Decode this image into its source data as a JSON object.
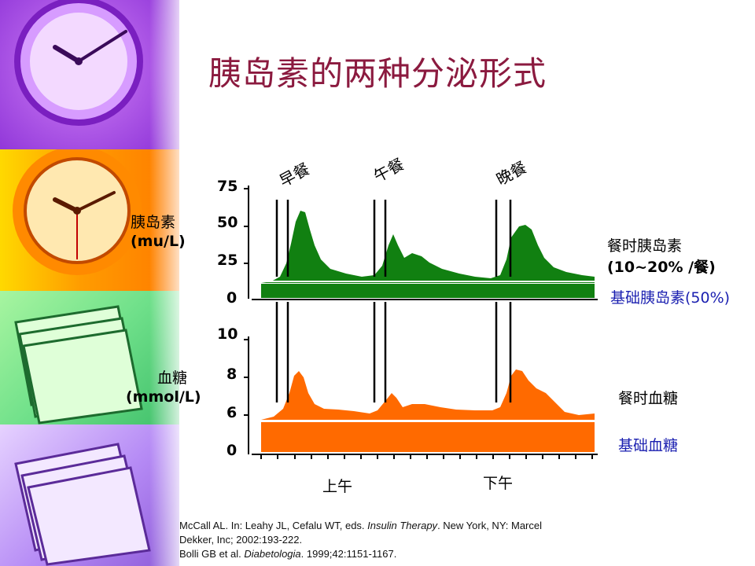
{
  "slide": {
    "title": "胰岛素的两种分泌形式"
  },
  "meals": [
    "早餐",
    "午餐",
    "晚餐"
  ],
  "insulin_panel": {
    "ylabel_line1": "胰岛素",
    "ylabel_line2": "(mu/L)",
    "ticks": [
      "75",
      "50",
      "25",
      "0"
    ],
    "label_meal_line1": "餐时胰岛素",
    "label_meal_line2": "(10~20% /餐)",
    "label_basal": "基础胰岛素(50%)"
  },
  "glucose_panel": {
    "ylabel_line1": "血糖",
    "ylabel_line2": "(mmol/L)",
    "ticks": [
      "10",
      "8",
      "6",
      "0"
    ],
    "label_meal": "餐时血糖",
    "label_basal": "基础血糖"
  },
  "x_labels": {
    "am": "上午",
    "pm": "下午"
  },
  "references": {
    "line1_pre": "McCall AL. In: Leahy JL, Cefalu WT, eds. ",
    "line1_ital": "Insulin Therapy",
    "line1_post": ". New York, NY: Marcel",
    "line2": "Dekker, Inc; 2002:193-222.",
    "line3_pre": "Bolli GB et al. ",
    "line3_ital": "Diabetologia",
    "line3_post": ". 1999;42:1151-1167."
  },
  "colors": {
    "title": "#8b1a3f",
    "insulin": "#118011",
    "glucose": "#ff6a00",
    "basal_label": "#1a1fb0"
  },
  "chart_data": [
    {
      "type": "area",
      "ylabel": "胰岛素 (mu/L)",
      "yticks": [
        0,
        25,
        50,
        75
      ],
      "ylim": [
        0,
        75
      ],
      "meal_markers": [
        "早餐",
        "午餐",
        "晚餐"
      ],
      "series": [
        {
          "name": "基础胰岛素(50%)",
          "values": [
            10,
            10,
            10,
            10,
            10,
            10,
            10,
            10,
            10,
            10,
            10,
            10,
            10,
            10,
            10,
            10,
            10,
            10,
            10,
            10
          ]
        },
        {
          "name": "餐时胰岛素",
          "values": [
            12,
            22,
            58,
            45,
            26,
            18,
            15,
            14,
            38,
            30,
            26,
            20,
            17,
            15,
            14,
            45,
            37,
            24,
            18,
            15
          ]
        }
      ]
    },
    {
      "type": "area",
      "ylabel": "血糖 (mmol/L)",
      "yticks": [
        0,
        6,
        8,
        10
      ],
      "ylim": [
        0,
        10
      ],
      "series": [
        {
          "name": "基础血糖",
          "values": [
            5.2,
            5.2,
            5.2,
            5.2,
            5.2,
            5.2,
            5.2,
            5.2,
            5.2,
            5.2,
            5.2,
            5.2,
            5.2,
            5.2,
            5.2,
            5.2,
            5.2,
            5.2,
            5.2,
            5.2
          ]
        },
        {
          "name": "餐时血糖",
          "values": [
            5.7,
            6.2,
            8.4,
            7.0,
            6.3,
            6.2,
            6.0,
            5.8,
            7.3,
            6.4,
            6.6,
            6.5,
            6.3,
            6.2,
            6.2,
            8.5,
            7.6,
            6.5,
            5.9,
            5.8
          ]
        }
      ]
    }
  ]
}
